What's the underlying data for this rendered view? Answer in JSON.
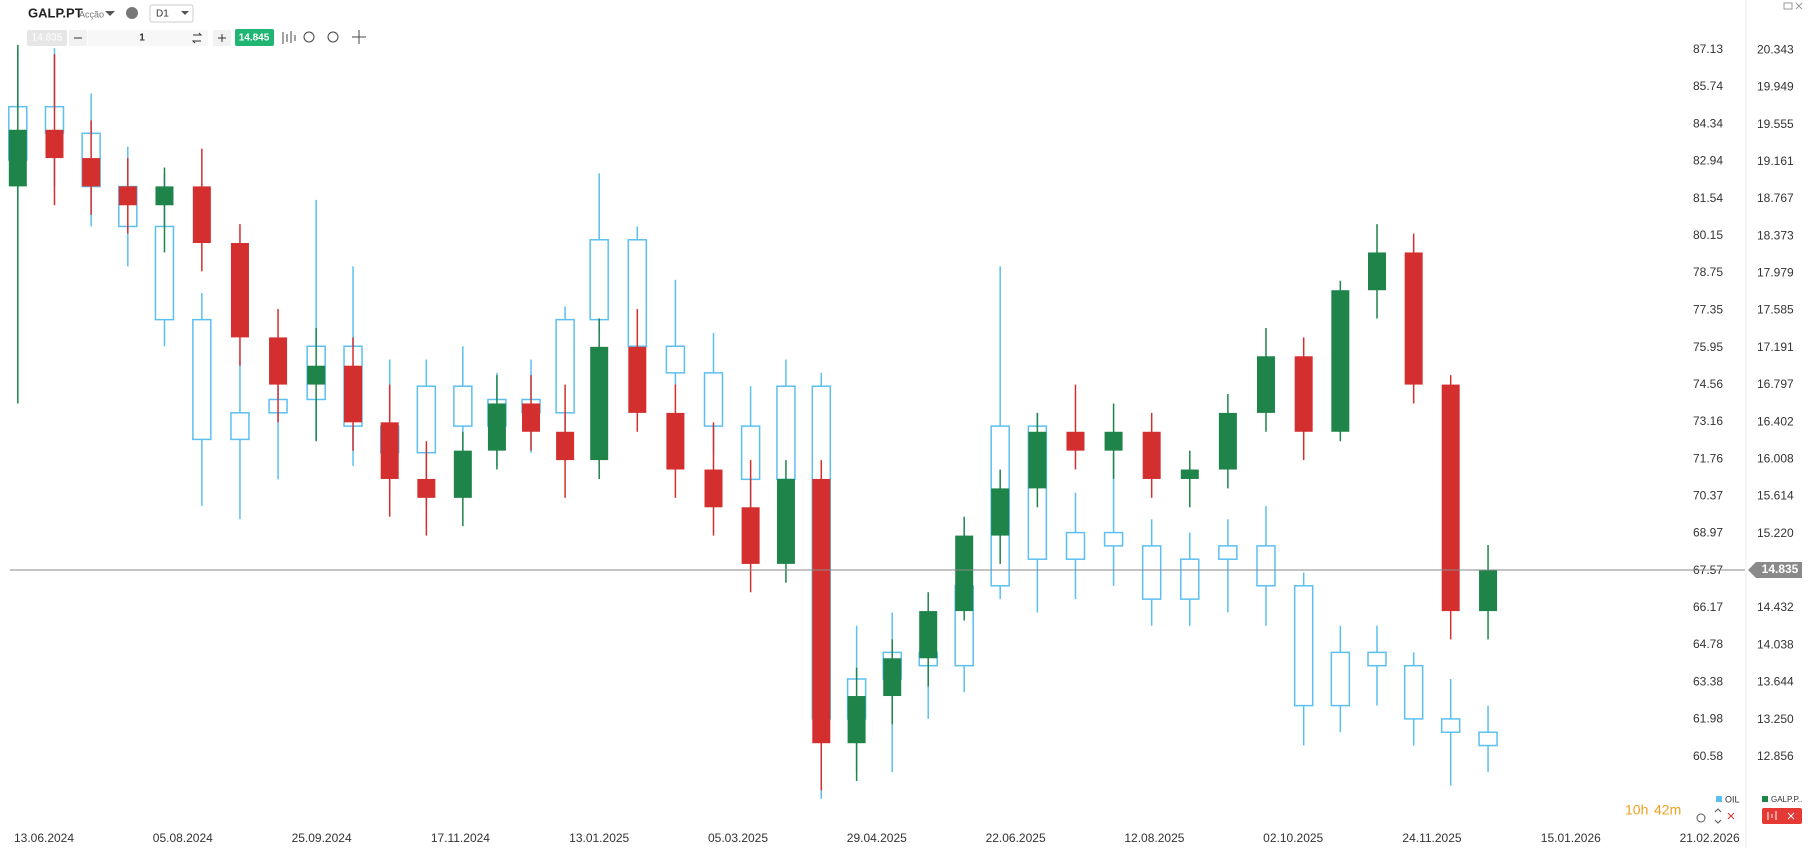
{
  "toolbar": {
    "symbol": "GALP.PT",
    "asset_type": "Acção",
    "timeframe": "D1",
    "bid": "14.835",
    "quantity": "1",
    "ask": "14.845"
  },
  "countdown": {
    "hours": "10h",
    "minutes": "42m"
  },
  "chart_data": {
    "type": "candlestick",
    "x": [
      "03.06.2024",
      "17.06.2024",
      "01.07.2024",
      "15.07.2024",
      "29.07.2024",
      "12.08.2024",
      "26.08.2024",
      "09.09.2024",
      "23.09.2024",
      "07.10.2024",
      "21.10.2024",
      "04.11.2024",
      "18.11.2024",
      "02.12.2024",
      "16.12.2024",
      "30.12.2024",
      "13.01.2025",
      "27.01.2025",
      "10.02.2025",
      "24.02.2025",
      "10.03.2025",
      "24.03.2025",
      "07.04.2025",
      "21.04.2025",
      "05.05.2025",
      "19.05.2025",
      "02.06.2025",
      "16.06.2025",
      "30.06.2025",
      "14.07.2025",
      "28.07.2025",
      "11.08.2025",
      "25.08.2025",
      "08.09.2025",
      "22.09.2025",
      "06.10.2025",
      "20.10.2025",
      "03.11.2025",
      "17.11.2025",
      "01.12.2025",
      "15.12.2025"
    ],
    "xticks": [
      "13.06.2024",
      "05.08.2024",
      "25.09.2024",
      "17.11.2024",
      "13.01.2025",
      "05.03.2025",
      "29.04.2025",
      "22.06.2025",
      "12.08.2025",
      "02.10.2025",
      "24.11.2025",
      "15.01.2026",
      "21.02.2026"
    ],
    "ylim": [
      58.24,
      87.43
    ],
    "yticks": [
      87.13,
      85.74,
      84.34,
      82.94,
      81.54,
      80.15,
      78.75,
      77.35,
      75.95,
      74.56,
      73.16,
      71.76,
      70.37,
      68.97,
      67.57,
      66.17,
      64.78,
      63.38,
      61.98,
      60.58
    ],
    "y2lim": [
      12.197,
      20.43
    ],
    "y2ticks": [
      20.343,
      19.949,
      19.555,
      19.161,
      18.767,
      18.373,
      17.979,
      17.585,
      17.191,
      16.797,
      16.402,
      16.008,
      15.614,
      {
        "value": 15.22,
        "label": "15.220"
      },
      14.432,
      14.038,
      13.644,
      {
        "value": 13.25,
        "label": "13.250"
      },
      12.856
    ],
    "last_price": 14.835,
    "series": [
      {
        "name": "OIL",
        "color": "#5bc0f0",
        "axis": "y",
        "open": [
          83.0,
          85.0,
          84.0,
          82.0,
          80.5,
          77.0,
          72.5,
          73.5,
          74.0,
          76.0,
          73.0,
          72.0,
          74.5,
          73.0,
          74.0,
          73.5,
          77.0,
          80.0,
          76.0,
          75.0,
          73.0,
          71.0,
          74.5,
          62.0,
          63.5,
          64.5,
          64.0,
          67.0,
          73.0,
          68.0,
          69.0,
          68.5,
          66.5,
          68.0,
          68.5,
          67.0,
          62.5,
          64.5,
          64.0,
          62.0,
          61.5
        ],
        "high": [
          87.1,
          87.2,
          85.5,
          83.5,
          82.5,
          78.0,
          75.5,
          76.0,
          81.5,
          79.0,
          75.5,
          75.5,
          76.0,
          75.0,
          75.5,
          77.5,
          82.5,
          80.5,
          78.5,
          76.5,
          74.5,
          75.5,
          75.0,
          65.5,
          66.0,
          66.0,
          68.0,
          79.0,
          73.5,
          70.5,
          72.0,
          69.5,
          69.0,
          69.5,
          70.0,
          67.5,
          65.5,
          65.5,
          64.5,
          63.5,
          62.5
        ],
        "low": [
          81.5,
          82.0,
          80.5,
          79.0,
          76.0,
          70.0,
          69.5,
          71.0,
          72.5,
          71.5,
          70.5,
          70.0,
          71.0,
          71.5,
          72.0,
          72.5,
          76.5,
          75.5,
          74.5,
          72.0,
          69.5,
          70.0,
          59.0,
          60.0,
          60.0,
          62.0,
          63.0,
          66.5,
          66.0,
          66.5,
          67.0,
          65.5,
          65.5,
          66.0,
          65.5,
          61.0,
          61.5,
          62.5,
          61.0,
          59.5,
          60.0
        ],
        "close": [
          85.0,
          84.0,
          82.0,
          80.5,
          77.0,
          72.5,
          73.5,
          74.0,
          76.0,
          73.0,
          72.0,
          74.5,
          73.0,
          74.0,
          73.5,
          77.0,
          80.0,
          76.0,
          75.0,
          73.0,
          71.0,
          74.5,
          62.0,
          63.5,
          64.5,
          64.0,
          67.0,
          73.0,
          68.0,
          69.0,
          68.5,
          66.5,
          68.0,
          68.5,
          67.0,
          62.5,
          64.5,
          64.0,
          62.0,
          61.5,
          61.0
        ]
      },
      {
        "name": "GALP.P..",
        "color": "#1e8449",
        "down_color": "#d32f2f",
        "axis": "y2",
        "open": [
          18.9,
          19.5,
          19.2,
          18.9,
          18.7,
          18.9,
          18.3,
          17.3,
          16.8,
          17.0,
          16.4,
          15.8,
          15.6,
          16.1,
          16.6,
          16.3,
          16.0,
          17.2,
          16.5,
          15.9,
          15.5,
          14.9,
          15.8,
          13.0,
          13.5,
          13.9,
          14.4,
          15.2,
          15.7,
          16.3,
          16.1,
          16.3,
          15.8,
          15.9,
          16.5,
          17.1,
          16.3,
          17.8,
          18.2,
          16.8,
          14.4
        ],
        "high": [
          20.4,
          20.3,
          19.6,
          19.2,
          19.1,
          19.3,
          18.5,
          17.6,
          17.4,
          17.3,
          16.8,
          16.2,
          16.3,
          16.9,
          16.9,
          16.8,
          17.5,
          17.6,
          16.8,
          16.4,
          16.0,
          16.0,
          16.0,
          13.8,
          14.1,
          14.6,
          15.4,
          15.9,
          16.5,
          16.8,
          16.6,
          16.5,
          16.1,
          16.7,
          17.4,
          17.3,
          17.9,
          18.5,
          18.4,
          16.9,
          15.1
        ],
        "low": [
          16.6,
          18.7,
          18.6,
          18.4,
          18.2,
          18.0,
          17.0,
          16.4,
          16.2,
          16.1,
          15.4,
          15.2,
          15.3,
          15.9,
          16.1,
          15.6,
          15.8,
          16.3,
          15.6,
          15.2,
          14.6,
          14.7,
          12.5,
          12.6,
          13.2,
          13.6,
          14.3,
          14.9,
          15.5,
          15.9,
          15.8,
          15.6,
          15.5,
          15.7,
          16.3,
          16.0,
          16.2,
          17.5,
          16.6,
          14.1,
          14.1
        ],
        "close": [
          19.5,
          19.2,
          18.9,
          18.7,
          18.9,
          18.3,
          17.3,
          16.8,
          17.0,
          16.4,
          15.8,
          15.6,
          16.1,
          16.6,
          16.3,
          16.0,
          17.2,
          16.5,
          15.9,
          15.5,
          14.9,
          15.8,
          13.0,
          13.5,
          13.9,
          14.4,
          15.2,
          15.7,
          16.3,
          16.1,
          16.3,
          15.8,
          15.9,
          16.5,
          17.1,
          16.3,
          17.8,
          18.2,
          16.8,
          14.4,
          14.835
        ]
      }
    ]
  }
}
